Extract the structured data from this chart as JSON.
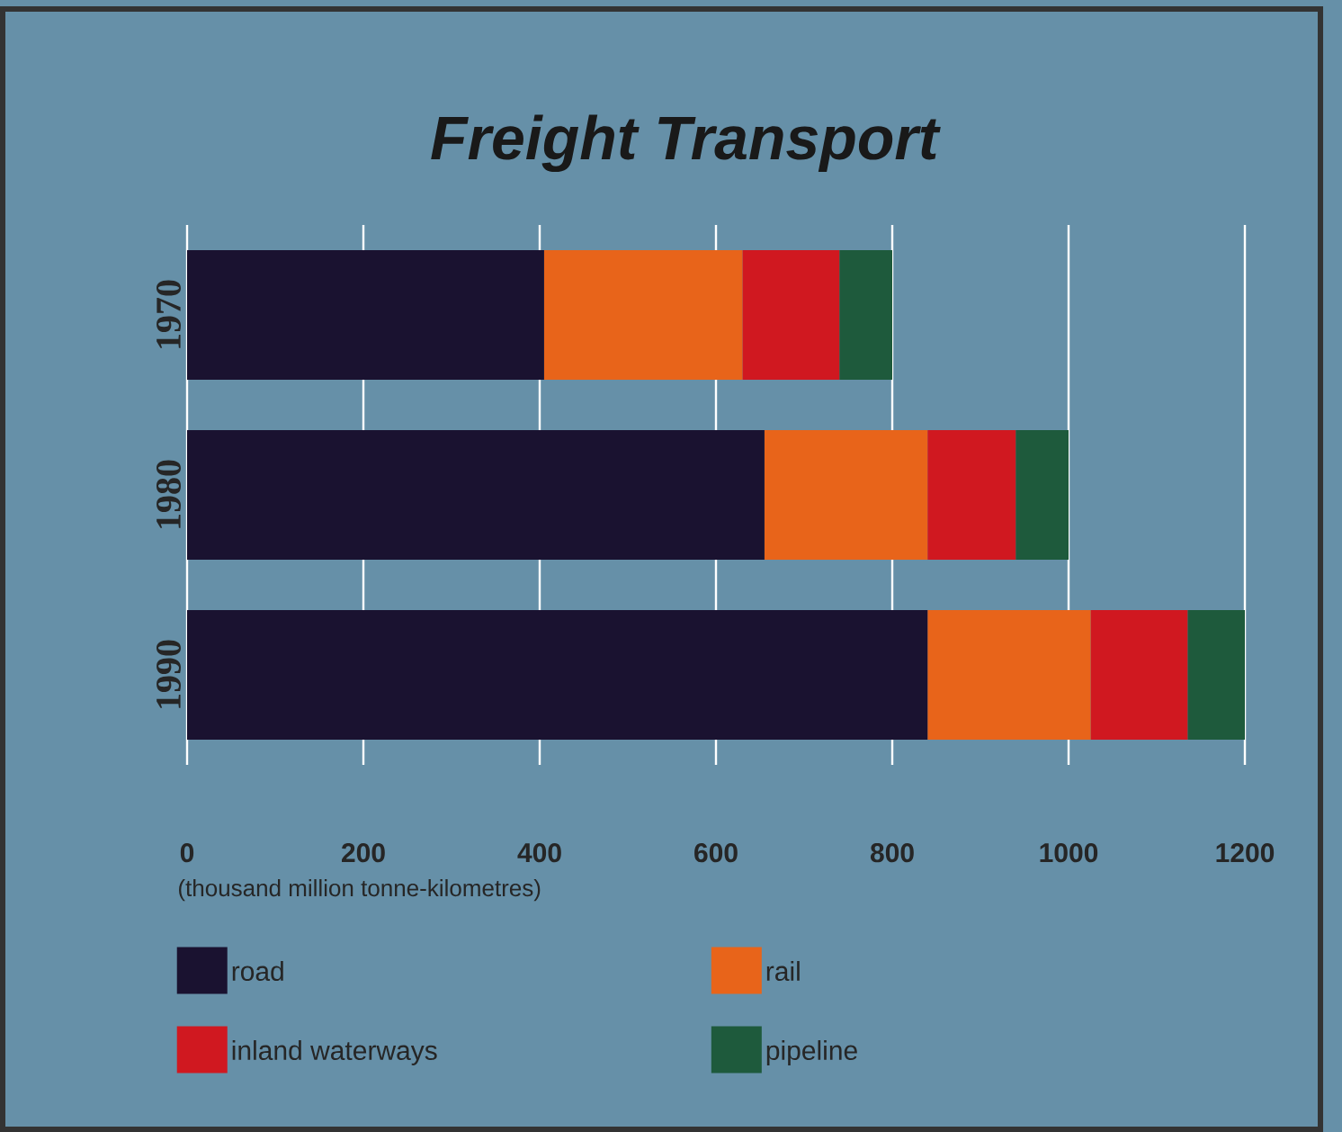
{
  "chart_data": {
    "type": "bar",
    "orientation": "horizontal",
    "stacked": true,
    "title": "Freight Transport",
    "xlabel": "(thousand million tonne-kilometres)",
    "categories": [
      "1970",
      "1980",
      "1990"
    ],
    "series": [
      {
        "name": "road",
        "color": "#1a1230",
        "values": [
          405,
          655,
          840
        ]
      },
      {
        "name": "rail",
        "color": "#e8641a",
        "values": [
          225,
          185,
          185
        ]
      },
      {
        "name": "inland waterways",
        "color": "#d01820",
        "values": [
          110,
          100,
          110
        ]
      },
      {
        "name": "pipeline",
        "color": "#1e5a3c",
        "values": [
          60,
          60,
          65
        ]
      }
    ],
    "xlim": [
      0,
      1200
    ],
    "xticks": [
      0,
      200,
      400,
      600,
      800,
      1000,
      1200
    ],
    "grid": "x",
    "legend": "bottom"
  }
}
